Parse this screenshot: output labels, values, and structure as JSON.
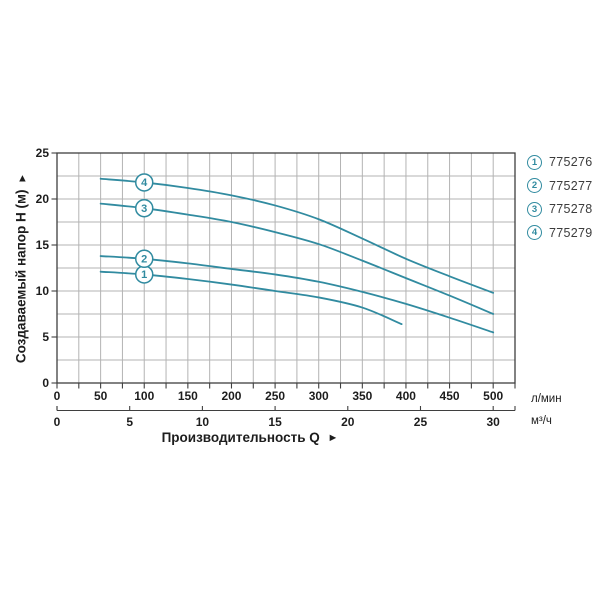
{
  "chart_data": {
    "type": "line",
    "title": "",
    "x_axis": {
      "label": "Производительность Q",
      "arrow": "►",
      "primary_unit": "л/мин",
      "primary_tick_labels": [
        0,
        50,
        100,
        150,
        200,
        250,
        300,
        350,
        400,
        450,
        500
      ],
      "primary_grid_step": 25,
      "primary_range": [
        0,
        525
      ],
      "secondary_unit": "м³/ч",
      "secondary_tick_labels": [
        0,
        5,
        10,
        15,
        20,
        25,
        30
      ],
      "secondary_range": [
        0,
        31.5
      ]
    },
    "y_axis": {
      "label": "Создаваемый напор H (м)",
      "arrow": "▲",
      "tick_labels": [
        0,
        5,
        10,
        15,
        20,
        25
      ],
      "range": [
        0,
        25
      ],
      "grid_step": 2.5
    },
    "grid": "on",
    "legend_position": "top-right",
    "series": [
      {
        "marker": "1",
        "code": "775276",
        "marker_at_x": 100,
        "points": [
          [
            50,
            12.1
          ],
          [
            100,
            11.8
          ],
          [
            150,
            11.3
          ],
          [
            200,
            10.7
          ],
          [
            250,
            10.0
          ],
          [
            300,
            9.3
          ],
          [
            350,
            8.2
          ],
          [
            395,
            6.4
          ]
        ]
      },
      {
        "marker": "2",
        "code": "775277",
        "marker_at_x": 100,
        "points": [
          [
            50,
            13.8
          ],
          [
            100,
            13.5
          ],
          [
            150,
            13.0
          ],
          [
            200,
            12.4
          ],
          [
            250,
            11.8
          ],
          [
            300,
            11.0
          ],
          [
            350,
            9.9
          ],
          [
            400,
            8.6
          ],
          [
            450,
            7.1
          ],
          [
            500,
            5.5
          ]
        ]
      },
      {
        "marker": "3",
        "code": "775278",
        "marker_at_x": 100,
        "points": [
          [
            50,
            19.5
          ],
          [
            100,
            19.0
          ],
          [
            150,
            18.3
          ],
          [
            200,
            17.5
          ],
          [
            250,
            16.4
          ],
          [
            300,
            15.1
          ],
          [
            350,
            13.3
          ],
          [
            400,
            11.4
          ],
          [
            450,
            9.5
          ],
          [
            500,
            7.5
          ]
        ]
      },
      {
        "marker": "4",
        "code": "775279",
        "marker_at_x": 100,
        "points": [
          [
            50,
            22.2
          ],
          [
            100,
            21.8
          ],
          [
            150,
            21.2
          ],
          [
            200,
            20.4
          ],
          [
            250,
            19.3
          ],
          [
            300,
            17.8
          ],
          [
            350,
            15.7
          ],
          [
            400,
            13.5
          ],
          [
            450,
            11.6
          ],
          [
            500,
            9.8
          ]
        ]
      }
    ],
    "colors": {
      "curve": "#318ba0",
      "grid": "#b3b3b3",
      "axis": "#3f3f3f",
      "tick_text": "#1d1d1d",
      "legend_text": "#3c3c3c"
    }
  },
  "legend": {
    "items": [
      {
        "number": "1",
        "code": "775276"
      },
      {
        "number": "2",
        "code": "775277"
      },
      {
        "number": "3",
        "code": "775278"
      },
      {
        "number": "4",
        "code": "775279"
      }
    ]
  }
}
